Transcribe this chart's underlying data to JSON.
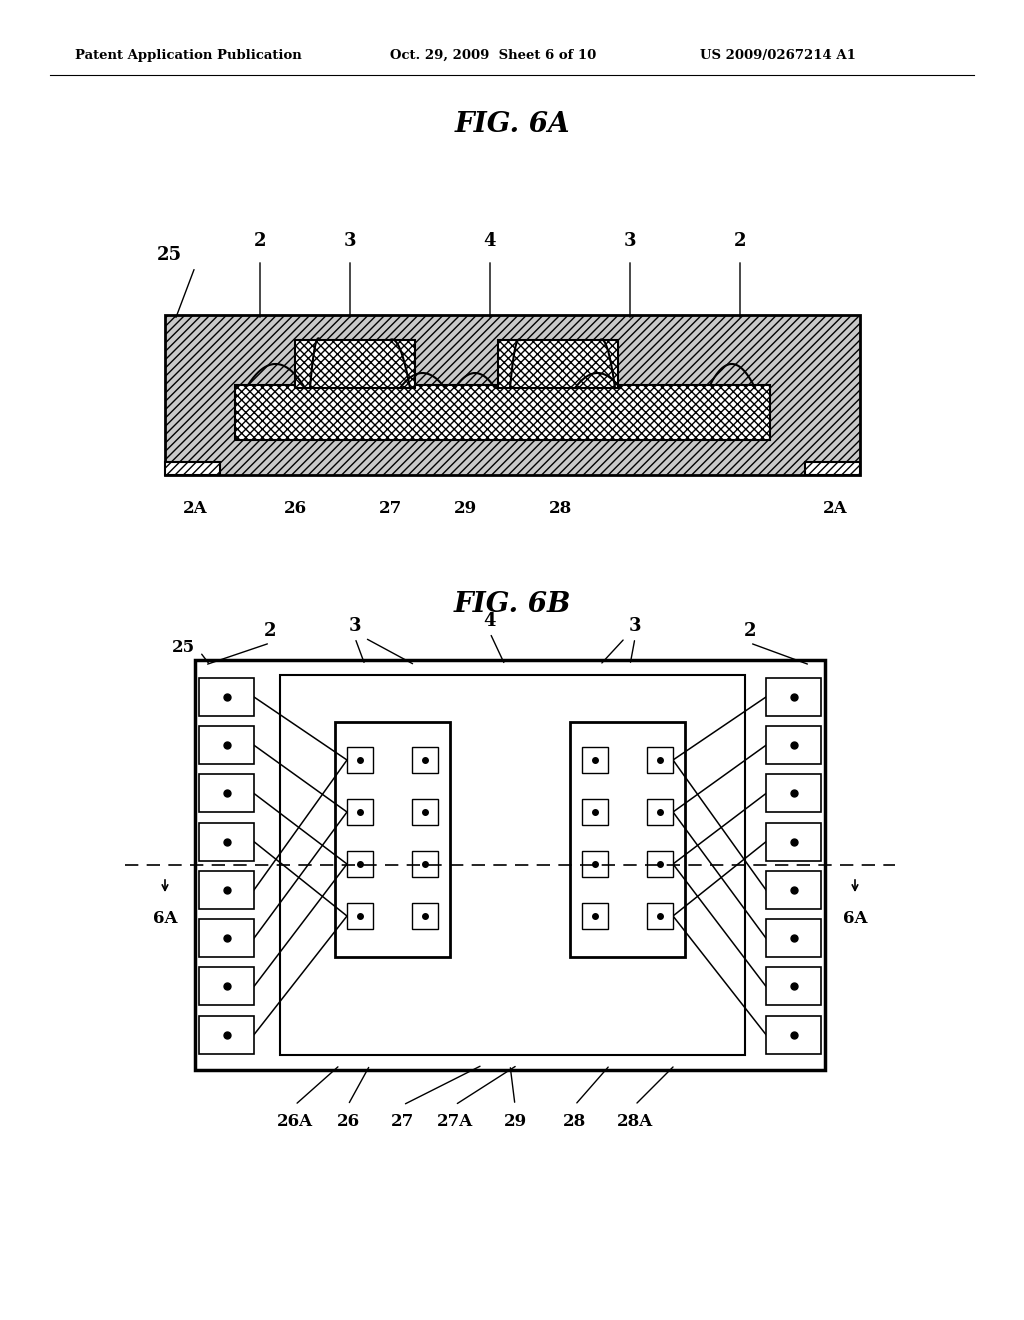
{
  "header_left": "Patent Application Publication",
  "header_mid": "Oct. 29, 2009  Sheet 6 of 10",
  "header_right": "US 2009/0267214 A1",
  "fig6a_title": "FIG. 6A",
  "fig6b_title": "FIG. 6B",
  "bg_color": "#ffffff",
  "line_color": "#000000"
}
